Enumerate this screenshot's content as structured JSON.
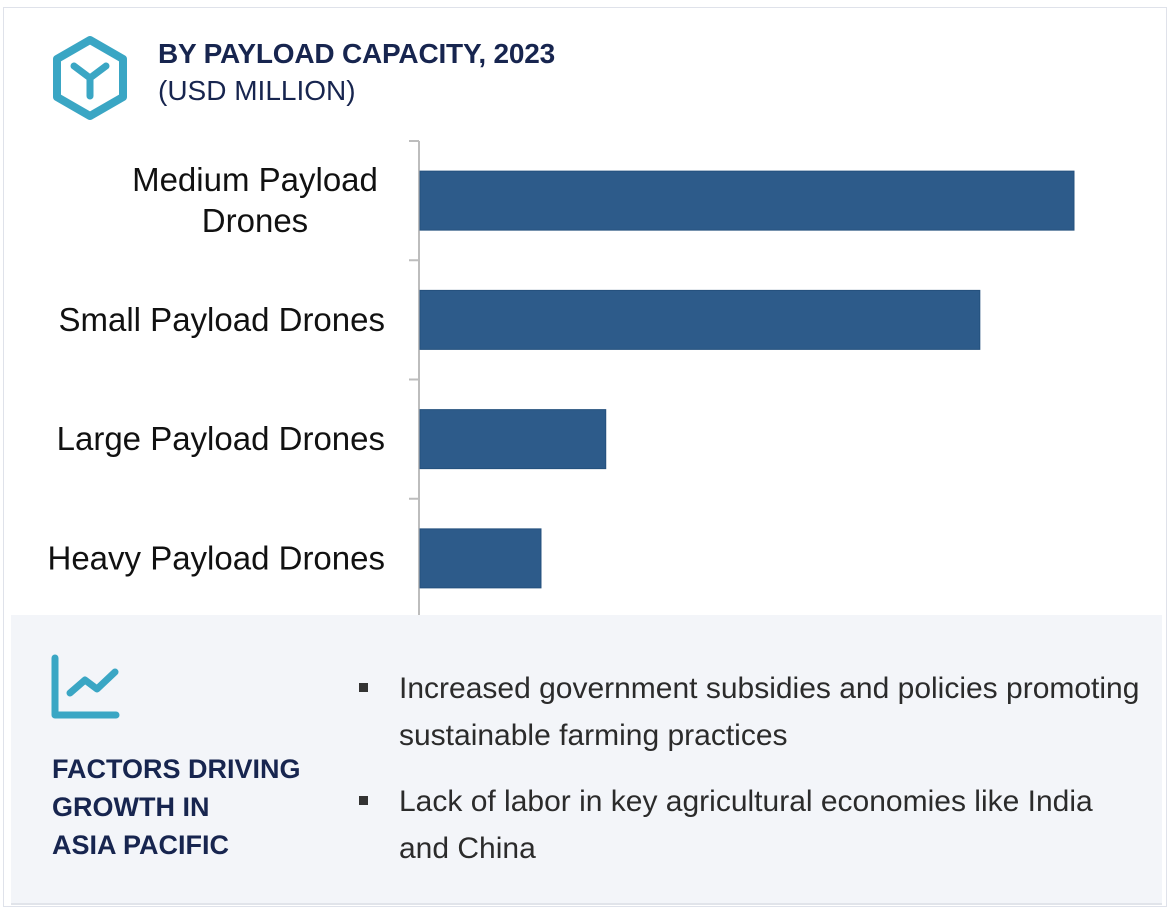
{
  "header": {
    "title": "BY PAYLOAD CAPACITY, 2023",
    "subtitle": "(USD MILLION)",
    "icon": "hexagon-y-logo-icon"
  },
  "colors": {
    "bar": "#2d5b8a",
    "accent": "#3aa6c4",
    "heading": "#17254f",
    "axis": "#bdbdbd",
    "panel_bg": "#f3f5f9"
  },
  "chart_data": {
    "type": "bar",
    "orientation": "horizontal",
    "title": "BY PAYLOAD CAPACITY, 2023",
    "subtitle": "(USD MILLION)",
    "categories": [
      "Medium Payload Drones",
      "Small Payload Drones",
      "Large Payload Drones",
      "Heavy Payload Drones"
    ],
    "category_lines": [
      [
        "Medium Payload",
        "Drones"
      ],
      [
        "Small Payload Drones"
      ],
      [
        "Large Payload Drones"
      ],
      [
        "Heavy Payload Drones"
      ]
    ],
    "values": [
      100,
      85.6,
      28.4,
      18.5
    ],
    "value_note": "relative index (no axis values shown)",
    "xlabel": "",
    "ylabel": "",
    "xlim": [
      0,
      100
    ],
    "grid": false,
    "legend": "none"
  },
  "factors": {
    "icon": "trend-chart-icon",
    "heading_lines": [
      "FACTORS DRIVING",
      "GROWTH IN",
      "ASIA PACIFIC"
    ],
    "bullets": [
      "Increased government subsidies and policies promoting sustainable farming practices",
      "Lack of labor in key agricultural economies like India and China"
    ]
  }
}
